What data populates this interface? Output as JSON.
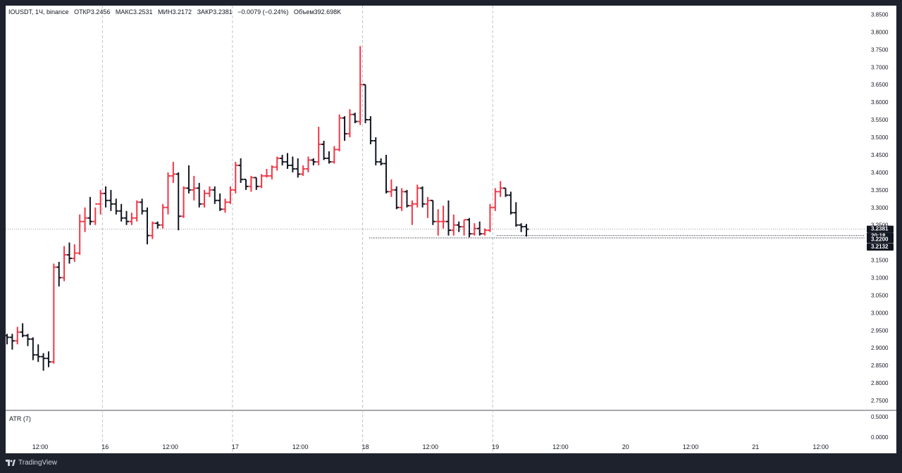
{
  "header": {
    "symbol": "IOUSDT, 1Ч, binance",
    "open": "ОТКР3.2456",
    "high": "МАКС3.2531",
    "low": "МИН3.2172",
    "close": "ЗАКР3.2381",
    "change": "−0.0079 (−0.24%)",
    "volume": "Объем392.698K"
  },
  "atr_label": "ATR (7)",
  "footer": {
    "brand": "TradingView"
  },
  "colors": {
    "up": "#131722",
    "down": "#f23645",
    "grid": "#b2b5be",
    "label_dark": "#131722"
  },
  "price_labels": {
    "last": "3.2381",
    "countdown": "20:18",
    "level1": "3.2200",
    "level2": "3.2132"
  },
  "chart_data": {
    "type": "ohlc",
    "interval": "1h",
    "y_ticks": [
      "3.8500",
      "3.8000",
      "3.7500",
      "3.7000",
      "3.6500",
      "3.6000",
      "3.5500",
      "3.5000",
      "3.4500",
      "3.4000",
      "3.3500",
      "3.3000",
      "3.2500",
      "3.2000",
      "3.1500",
      "3.1000",
      "3.0500",
      "3.0000",
      "2.9500",
      "2.9000",
      "2.8500",
      "2.8000",
      "2.7500"
    ],
    "ylim": [
      2.74,
      3.855
    ],
    "atr_ticks": [
      "0.5000",
      "0.0000"
    ],
    "x_ticks": [
      "12:00",
      "16",
      "12:00",
      "17",
      "12:00",
      "18",
      "12:00",
      "19",
      "12:00",
      "20",
      "12:00",
      "21",
      "12:00"
    ],
    "day_separators": [
      "16",
      "17",
      "18",
      "19"
    ],
    "last_price": 3.2381,
    "level1": 3.22,
    "level2": 3.2132,
    "series": [
      {
        "o": 2.935,
        "h": 2.94,
        "l": 2.91,
        "c": 2.93
      },
      {
        "o": 2.93,
        "h": 2.94,
        "l": 2.895,
        "c": 2.92
      },
      {
        "o": 2.92,
        "h": 2.96,
        "l": 2.91,
        "c": 2.945
      },
      {
        "o": 2.945,
        "h": 2.97,
        "l": 2.93,
        "c": 2.935
      },
      {
        "o": 2.935,
        "h": 2.94,
        "l": 2.905,
        "c": 2.925
      },
      {
        "o": 2.925,
        "h": 2.93,
        "l": 2.865,
        "c": 2.88
      },
      {
        "o": 2.88,
        "h": 2.91,
        "l": 2.86,
        "c": 2.875
      },
      {
        "o": 2.875,
        "h": 2.885,
        "l": 2.835,
        "c": 2.87
      },
      {
        "o": 2.87,
        "h": 2.89,
        "l": 2.845,
        "c": 2.86
      },
      {
        "o": 2.86,
        "h": 3.14,
        "l": 2.855,
        "c": 3.13
      },
      {
        "o": 3.13,
        "h": 3.145,
        "l": 3.075,
        "c": 3.1
      },
      {
        "o": 3.1,
        "h": 3.19,
        "l": 3.09,
        "c": 3.165
      },
      {
        "o": 3.165,
        "h": 3.2,
        "l": 3.14,
        "c": 3.155
      },
      {
        "o": 3.155,
        "h": 3.195,
        "l": 3.145,
        "c": 3.17
      },
      {
        "o": 3.17,
        "h": 3.28,
        "l": 3.165,
        "c": 3.26
      },
      {
        "o": 3.26,
        "h": 3.3,
        "l": 3.23,
        "c": 3.27
      },
      {
        "o": 3.27,
        "h": 3.33,
        "l": 3.25,
        "c": 3.26
      },
      {
        "o": 3.26,
        "h": 3.3,
        "l": 3.25,
        "c": 3.31
      },
      {
        "o": 3.31,
        "h": 3.35,
        "l": 3.28,
        "c": 3.34
      },
      {
        "o": 3.34,
        "h": 3.36,
        "l": 3.3,
        "c": 3.32
      },
      {
        "o": 3.32,
        "h": 3.35,
        "l": 3.29,
        "c": 3.31
      },
      {
        "o": 3.31,
        "h": 3.325,
        "l": 3.28,
        "c": 3.29
      },
      {
        "o": 3.29,
        "h": 3.31,
        "l": 3.26,
        "c": 3.27
      },
      {
        "o": 3.27,
        "h": 3.29,
        "l": 3.25,
        "c": 3.26
      },
      {
        "o": 3.26,
        "h": 3.285,
        "l": 3.25,
        "c": 3.27
      },
      {
        "o": 3.27,
        "h": 3.32,
        "l": 3.26,
        "c": 3.315
      },
      {
        "o": 3.315,
        "h": 3.325,
        "l": 3.28,
        "c": 3.29
      },
      {
        "o": 3.29,
        "h": 3.3,
        "l": 3.195,
        "c": 3.22
      },
      {
        "o": 3.22,
        "h": 3.26,
        "l": 3.21,
        "c": 3.255
      },
      {
        "o": 3.255,
        "h": 3.26,
        "l": 3.24,
        "c": 3.25
      },
      {
        "o": 3.25,
        "h": 3.31,
        "l": 3.24,
        "c": 3.3
      },
      {
        "o": 3.3,
        "h": 3.4,
        "l": 3.28,
        "c": 3.39
      },
      {
        "o": 3.39,
        "h": 3.43,
        "l": 3.37,
        "c": 3.395
      },
      {
        "o": 3.395,
        "h": 3.4,
        "l": 3.235,
        "c": 3.275
      },
      {
        "o": 3.275,
        "h": 3.36,
        "l": 3.27,
        "c": 3.355
      },
      {
        "o": 3.355,
        "h": 3.42,
        "l": 3.34,
        "c": 3.35
      },
      {
        "o": 3.35,
        "h": 3.39,
        "l": 3.32,
        "c": 3.355
      },
      {
        "o": 3.355,
        "h": 3.37,
        "l": 3.3,
        "c": 3.31
      },
      {
        "o": 3.31,
        "h": 3.35,
        "l": 3.3,
        "c": 3.34
      },
      {
        "o": 3.34,
        "h": 3.36,
        "l": 3.33,
        "c": 3.35
      },
      {
        "o": 3.35,
        "h": 3.36,
        "l": 3.31,
        "c": 3.32
      },
      {
        "o": 3.32,
        "h": 3.34,
        "l": 3.29,
        "c": 3.295
      },
      {
        "o": 3.295,
        "h": 3.325,
        "l": 3.285,
        "c": 3.315
      },
      {
        "o": 3.315,
        "h": 3.36,
        "l": 3.31,
        "c": 3.35
      },
      {
        "o": 3.35,
        "h": 3.43,
        "l": 3.34,
        "c": 3.42
      },
      {
        "o": 3.42,
        "h": 3.44,
        "l": 3.37,
        "c": 3.38
      },
      {
        "o": 3.38,
        "h": 3.38,
        "l": 3.35,
        "c": 3.36
      },
      {
        "o": 3.36,
        "h": 3.39,
        "l": 3.345,
        "c": 3.385
      },
      {
        "o": 3.385,
        "h": 3.385,
        "l": 3.35,
        "c": 3.36
      },
      {
        "o": 3.36,
        "h": 3.395,
        "l": 3.355,
        "c": 3.39
      },
      {
        "o": 3.39,
        "h": 3.41,
        "l": 3.385,
        "c": 3.39
      },
      {
        "o": 3.39,
        "h": 3.42,
        "l": 3.38,
        "c": 3.415
      },
      {
        "o": 3.415,
        "h": 3.445,
        "l": 3.405,
        "c": 3.44
      },
      {
        "o": 3.44,
        "h": 3.45,
        "l": 3.42,
        "c": 3.43
      },
      {
        "o": 3.43,
        "h": 3.455,
        "l": 3.41,
        "c": 3.42
      },
      {
        "o": 3.42,
        "h": 3.445,
        "l": 3.4,
        "c": 3.41
      },
      {
        "o": 3.41,
        "h": 3.44,
        "l": 3.385,
        "c": 3.395
      },
      {
        "o": 3.395,
        "h": 3.42,
        "l": 3.39,
        "c": 3.41
      },
      {
        "o": 3.41,
        "h": 3.445,
        "l": 3.4,
        "c": 3.435
      },
      {
        "o": 3.435,
        "h": 3.44,
        "l": 3.42,
        "c": 3.43
      },
      {
        "o": 3.43,
        "h": 3.53,
        "l": 3.42,
        "c": 3.48
      },
      {
        "o": 3.48,
        "h": 3.49,
        "l": 3.435,
        "c": 3.44
      },
      {
        "o": 3.44,
        "h": 3.46,
        "l": 3.425,
        "c": 3.43
      },
      {
        "o": 3.43,
        "h": 3.475,
        "l": 3.425,
        "c": 3.465
      },
      {
        "o": 3.465,
        "h": 3.565,
        "l": 3.46,
        "c": 3.555
      },
      {
        "o": 3.555,
        "h": 3.56,
        "l": 3.49,
        "c": 3.51
      },
      {
        "o": 3.51,
        "h": 3.58,
        "l": 3.5,
        "c": 3.565
      },
      {
        "o": 3.565,
        "h": 3.57,
        "l": 3.54,
        "c": 3.545
      },
      {
        "o": 3.545,
        "h": 3.76,
        "l": 3.535,
        "c": 3.65
      },
      {
        "o": 3.65,
        "h": 3.65,
        "l": 3.54,
        "c": 3.55
      },
      {
        "o": 3.55,
        "h": 3.56,
        "l": 3.48,
        "c": 3.49
      },
      {
        "o": 3.49,
        "h": 3.5,
        "l": 3.42,
        "c": 3.43
      },
      {
        "o": 3.43,
        "h": 3.44,
        "l": 3.42,
        "c": 3.425
      },
      {
        "o": 3.425,
        "h": 3.45,
        "l": 3.34,
        "c": 3.345
      },
      {
        "o": 3.345,
        "h": 3.38,
        "l": 3.33,
        "c": 3.35
      },
      {
        "o": 3.35,
        "h": 3.36,
        "l": 3.295,
        "c": 3.3
      },
      {
        "o": 3.3,
        "h": 3.355,
        "l": 3.29,
        "c": 3.345
      },
      {
        "o": 3.345,
        "h": 3.35,
        "l": 3.3,
        "c": 3.305
      },
      {
        "o": 3.305,
        "h": 3.32,
        "l": 3.25,
        "c": 3.31
      },
      {
        "o": 3.31,
        "h": 3.365,
        "l": 3.3,
        "c": 3.355
      },
      {
        "o": 3.355,
        "h": 3.36,
        "l": 3.3,
        "c": 3.31
      },
      {
        "o": 3.31,
        "h": 3.33,
        "l": 3.27,
        "c": 3.32
      },
      {
        "o": 3.32,
        "h": 3.32,
        "l": 3.25,
        "c": 3.26
      },
      {
        "o": 3.26,
        "h": 3.295,
        "l": 3.22,
        "c": 3.26
      },
      {
        "o": 3.26,
        "h": 3.305,
        "l": 3.24,
        "c": 3.26
      },
      {
        "o": 3.26,
        "h": 3.32,
        "l": 3.22,
        "c": 3.235
      },
      {
        "o": 3.235,
        "h": 3.28,
        "l": 3.22,
        "c": 3.25
      },
      {
        "o": 3.25,
        "h": 3.26,
        "l": 3.23,
        "c": 3.245
      },
      {
        "o": 3.245,
        "h": 3.265,
        "l": 3.22,
        "c": 3.265
      },
      {
        "o": 3.265,
        "h": 3.27,
        "l": 3.215,
        "c": 3.225
      },
      {
        "o": 3.225,
        "h": 3.255,
        "l": 3.22,
        "c": 3.24
      },
      {
        "o": 3.24,
        "h": 3.26,
        "l": 3.22,
        "c": 3.225
      },
      {
        "o": 3.225,
        "h": 3.24,
        "l": 3.22,
        "c": 3.235
      },
      {
        "o": 3.235,
        "h": 3.31,
        "l": 3.23,
        "c": 3.3
      },
      {
        "o": 3.3,
        "h": 3.355,
        "l": 3.29,
        "c": 3.345
      },
      {
        "o": 3.345,
        "h": 3.375,
        "l": 3.33,
        "c": 3.355
      },
      {
        "o": 3.355,
        "h": 3.355,
        "l": 3.33,
        "c": 3.335
      },
      {
        "o": 3.335,
        "h": 3.345,
        "l": 3.28,
        "c": 3.285
      },
      {
        "o": 3.285,
        "h": 3.315,
        "l": 3.245,
        "c": 3.25
      },
      {
        "o": 3.25,
        "h": 3.255,
        "l": 3.23,
        "c": 3.245
      },
      {
        "o": 3.2456,
        "h": 3.2531,
        "l": 3.2172,
        "c": 3.2381
      }
    ]
  }
}
